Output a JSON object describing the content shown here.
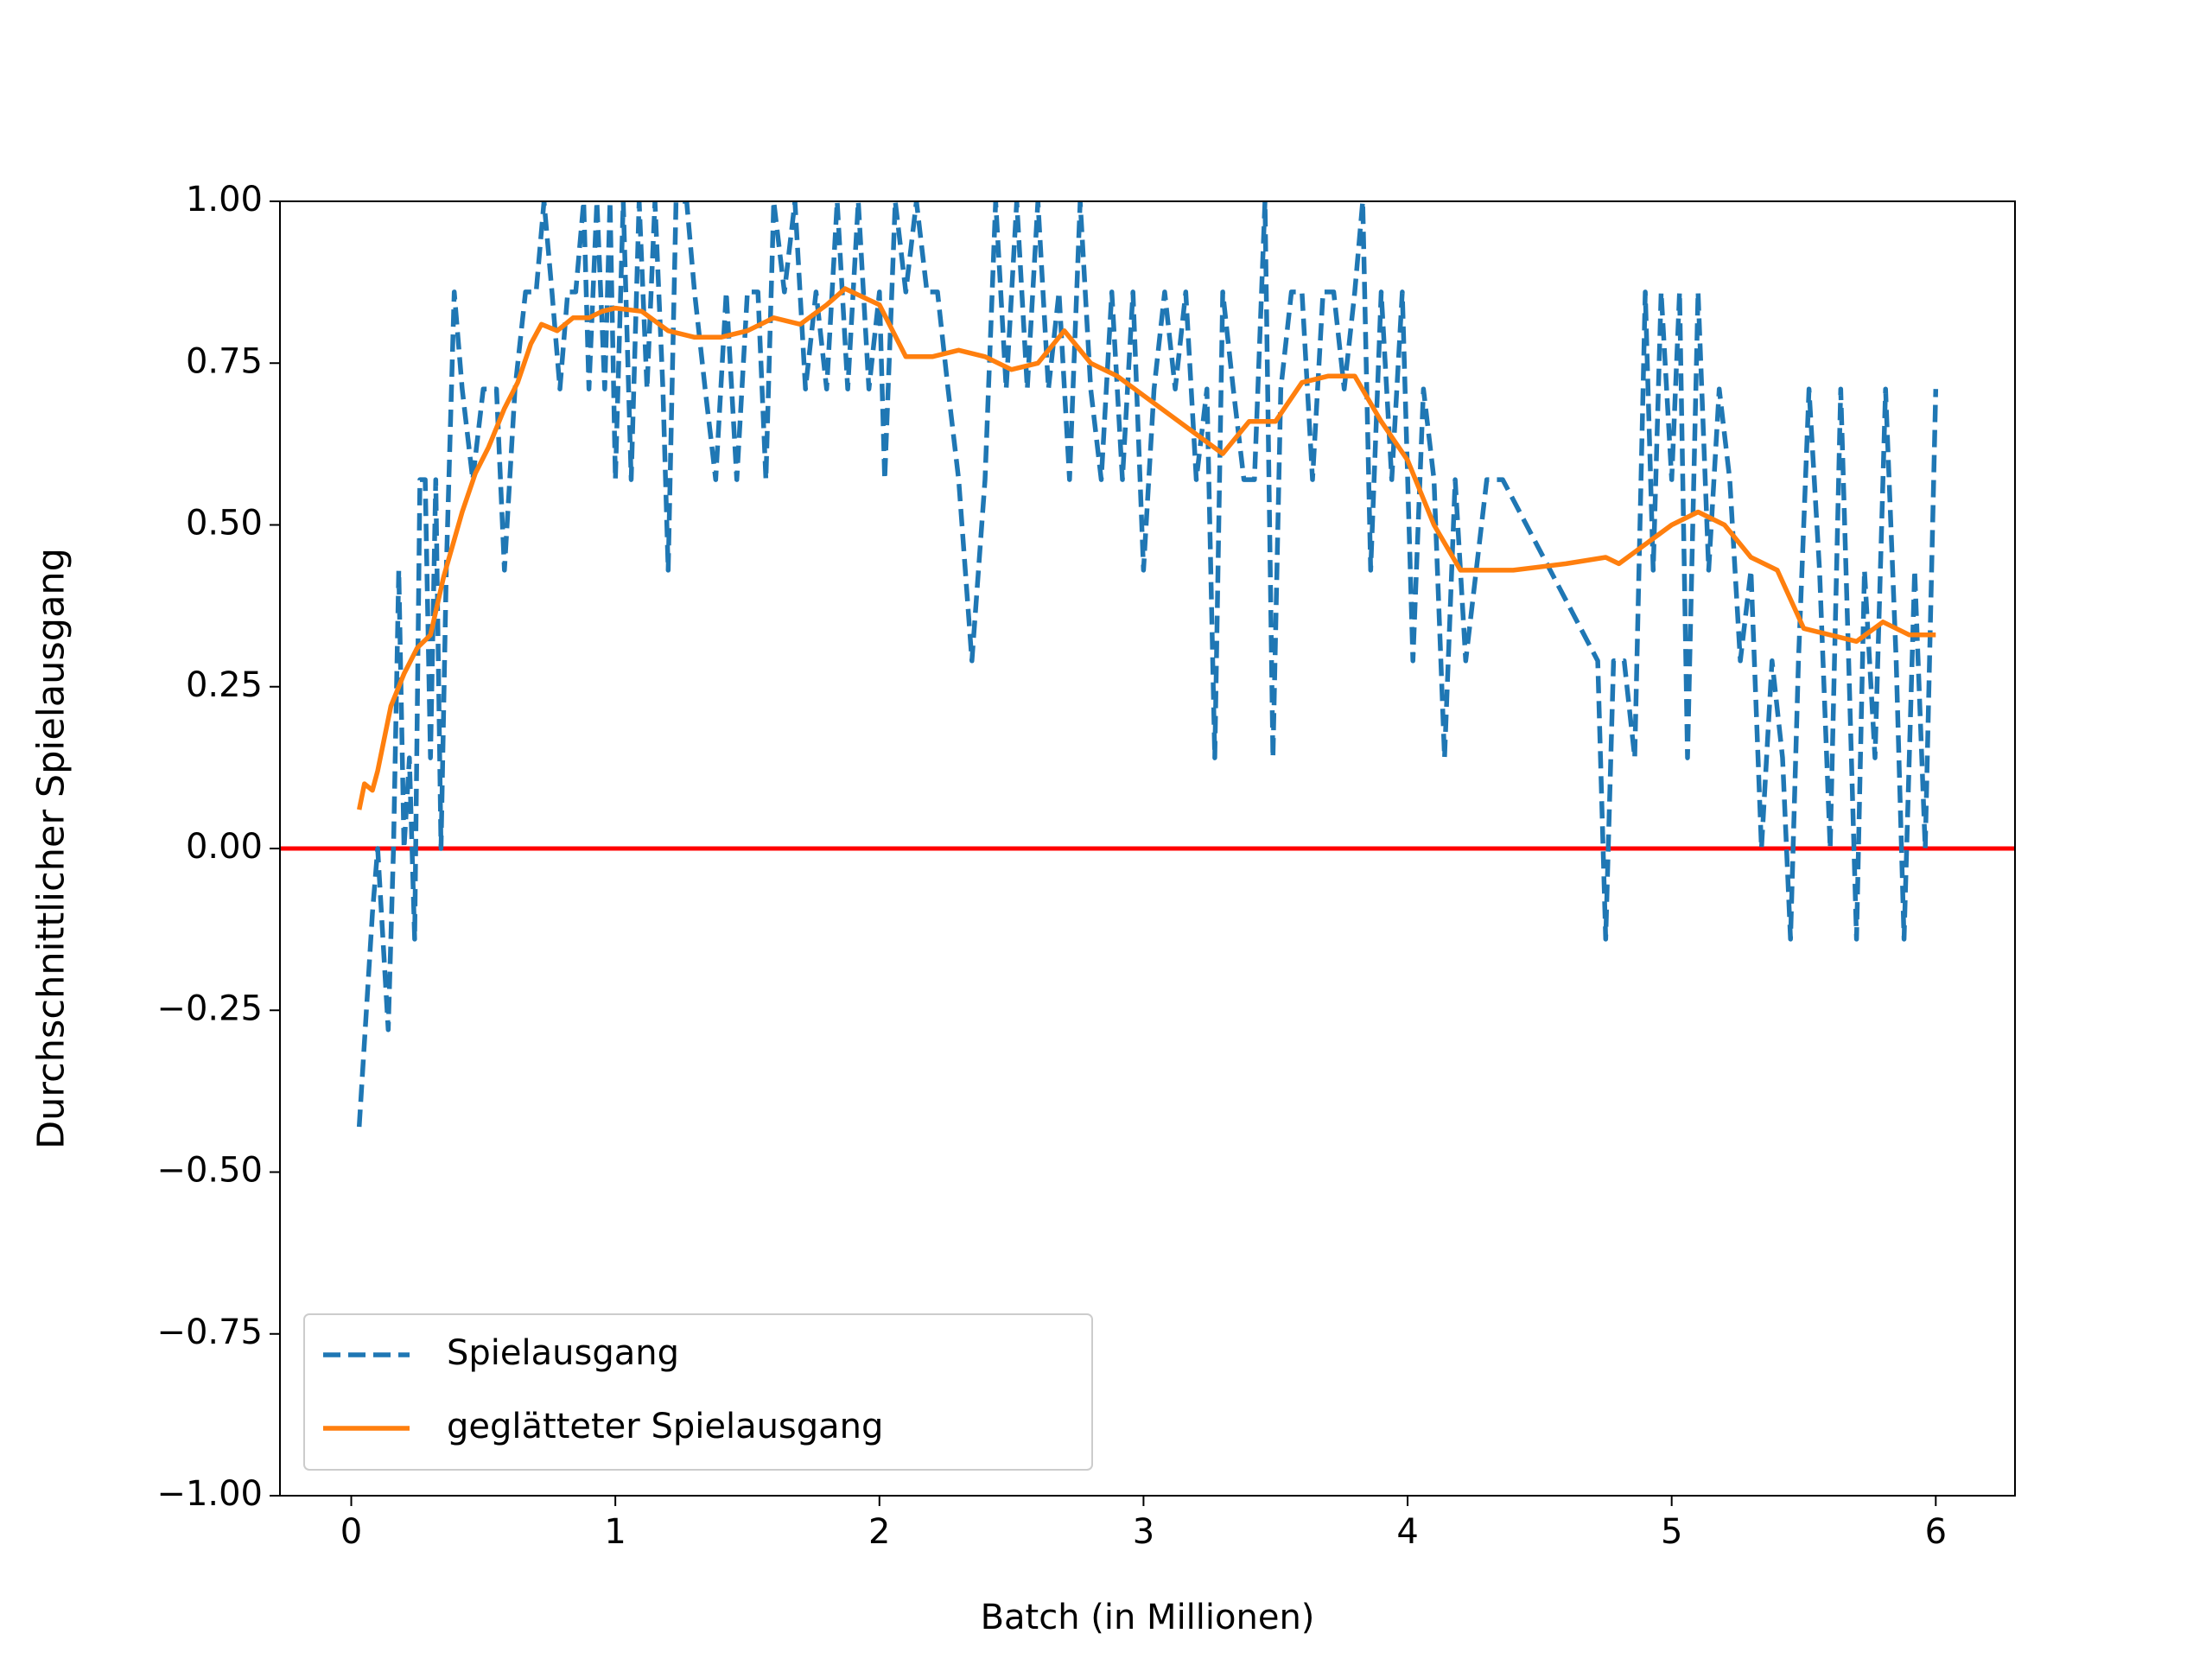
{
  "chart_data": {
    "type": "line",
    "x_label": "Batch (in Millionen)",
    "y_label": "Durchschnittlicher Spielausgang",
    "xlim": [
      -0.27,
      6.3
    ],
    "ylim": [
      -1,
      1
    ],
    "xticks": [
      0,
      1,
      2,
      3,
      4,
      5,
      6
    ],
    "yticks": [
      {
        "value": -1,
        "label": "−1.00"
      },
      {
        "value": -0.75,
        "label": "−0.75"
      },
      {
        "value": -0.5,
        "label": "−0.50"
      },
      {
        "value": -0.25,
        "label": "−0.25"
      },
      {
        "value": 0,
        "label": "0.00"
      },
      {
        "value": 0.25,
        "label": "0.25"
      },
      {
        "value": 0.5,
        "label": "0.50"
      },
      {
        "value": 0.75,
        "label": "0.75"
      },
      {
        "value": 1,
        "label": "1.00"
      }
    ],
    "legend_position": "lower left",
    "reference_line": {
      "y": 0,
      "color": "#ff0000"
    },
    "series": [
      {
        "name": "Spielausgang",
        "color": "#1f77b4",
        "style": "dashed",
        "x": [
          0.03,
          0.08,
          0.1,
          0.12,
          0.14,
          0.16,
          0.18,
          0.2,
          0.22,
          0.24,
          0.26,
          0.28,
          0.3,
          0.32,
          0.34,
          0.36,
          0.39,
          0.42,
          0.46,
          0.5,
          0.55,
          0.58,
          0.62,
          0.66,
          0.7,
          0.73,
          0.76,
          0.79,
          0.82,
          0.85,
          0.88,
          0.9,
          0.93,
          0.96,
          0.98,
          1.0,
          1.03,
          1.06,
          1.09,
          1.12,
          1.15,
          1.18,
          1.2,
          1.23,
          1.27,
          1.3,
          1.34,
          1.38,
          1.42,
          1.46,
          1.5,
          1.54,
          1.57,
          1.6,
          1.64,
          1.68,
          1.72,
          1.76,
          1.8,
          1.84,
          1.88,
          1.92,
          1.96,
          2.0,
          2.02,
          2.06,
          2.1,
          2.14,
          2.18,
          2.22,
          2.26,
          2.3,
          2.35,
          2.4,
          2.44,
          2.48,
          2.52,
          2.56,
          2.6,
          2.64,
          2.68,
          2.72,
          2.76,
          2.8,
          2.84,
          2.88,
          2.92,
          2.96,
          3.0,
          3.04,
          3.08,
          3.12,
          3.16,
          3.2,
          3.24,
          3.27,
          3.3,
          3.34,
          3.38,
          3.42,
          3.46,
          3.49,
          3.52,
          3.56,
          3.6,
          3.64,
          3.68,
          3.72,
          3.76,
          3.8,
          3.83,
          3.86,
          3.9,
          3.94,
          3.98,
          4.02,
          4.06,
          4.1,
          4.14,
          4.18,
          4.22,
          4.26,
          4.3,
          4.36,
          4.72,
          4.75,
          4.78,
          4.82,
          4.86,
          4.9,
          4.93,
          4.96,
          5.0,
          5.03,
          5.06,
          5.1,
          5.14,
          5.18,
          5.22,
          5.26,
          5.3,
          5.34,
          5.38,
          5.42,
          5.45,
          5.48,
          5.52,
          5.56,
          5.6,
          5.64,
          5.67,
          5.7,
          5.73,
          5.77,
          5.81,
          5.85,
          5.88,
          5.92,
          5.96,
          6.0
        ],
        "values": [
          -0.43,
          -0.1,
          0.0,
          -0.14,
          -0.28,
          0.0,
          0.43,
          0.0,
          0.14,
          -0.14,
          0.57,
          0.57,
          0.14,
          0.57,
          0.0,
          0.43,
          0.86,
          0.71,
          0.57,
          0.71,
          0.71,
          0.43,
          0.71,
          0.86,
          0.86,
          1.0,
          0.86,
          0.71,
          0.86,
          0.86,
          1.0,
          0.71,
          1.0,
          0.71,
          1.0,
          0.57,
          1.0,
          0.57,
          1.0,
          0.71,
          1.0,
          0.71,
          0.43,
          1.0,
          1.0,
          0.86,
          0.71,
          0.57,
          0.86,
          0.57,
          0.86,
          0.86,
          0.57,
          1.0,
          0.86,
          1.0,
          0.71,
          0.86,
          0.71,
          1.0,
          0.71,
          1.0,
          0.71,
          0.86,
          0.57,
          1.0,
          0.86,
          1.0,
          0.86,
          0.86,
          0.71,
          0.57,
          0.29,
          0.57,
          1.0,
          0.71,
          1.0,
          0.71,
          1.0,
          0.71,
          0.86,
          0.57,
          1.0,
          0.71,
          0.57,
          0.86,
          0.57,
          0.86,
          0.43,
          0.71,
          0.86,
          0.71,
          0.86,
          0.57,
          0.71,
          0.14,
          0.86,
          0.71,
          0.57,
          0.57,
          1.0,
          0.14,
          0.71,
          0.86,
          0.86,
          0.57,
          0.86,
          0.86,
          0.71,
          0.86,
          1.0,
          0.43,
          0.86,
          0.57,
          0.86,
          0.29,
          0.71,
          0.57,
          0.14,
          0.57,
          0.29,
          0.43,
          0.57,
          0.57,
          0.29,
          -0.14,
          0.29,
          0.29,
          0.14,
          0.86,
          0.43,
          0.86,
          0.57,
          0.86,
          0.14,
          0.86,
          0.43,
          0.71,
          0.57,
          0.29,
          0.43,
          0.0,
          0.29,
          0.14,
          -0.14,
          0.29,
          0.71,
          0.43,
          0.0,
          0.71,
          0.29,
          -0.14,
          0.43,
          0.14,
          0.71,
          0.29,
          -0.14,
          0.43,
          0.0,
          0.71
        ]
      },
      {
        "name": "geglätteter Spielausgang",
        "color": "#ff7f0e",
        "style": "solid",
        "x": [
          0.03,
          0.05,
          0.08,
          0.1,
          0.15,
          0.2,
          0.25,
          0.3,
          0.35,
          0.42,
          0.47,
          0.52,
          0.58,
          0.63,
          0.68,
          0.72,
          0.78,
          0.84,
          0.9,
          0.95,
          1.0,
          1.1,
          1.2,
          1.3,
          1.4,
          1.5,
          1.6,
          1.7,
          1.8,
          1.87,
          2.0,
          2.1,
          2.2,
          2.3,
          2.4,
          2.5,
          2.6,
          2.7,
          2.8,
          2.9,
          3.0,
          3.1,
          3.2,
          3.3,
          3.4,
          3.5,
          3.6,
          3.7,
          3.8,
          3.9,
          4.0,
          4.1,
          4.2,
          4.4,
          4.6,
          4.75,
          4.8,
          4.9,
          5.0,
          5.1,
          5.2,
          5.3,
          5.4,
          5.5,
          5.6,
          5.7,
          5.8,
          5.9,
          6.0
        ],
        "values": [
          0.06,
          0.1,
          0.09,
          0.12,
          0.22,
          0.27,
          0.31,
          0.33,
          0.42,
          0.52,
          0.58,
          0.62,
          0.68,
          0.72,
          0.78,
          0.81,
          0.8,
          0.82,
          0.82,
          0.83,
          0.835,
          0.83,
          0.8,
          0.79,
          0.79,
          0.8,
          0.82,
          0.81,
          0.84,
          0.865,
          0.84,
          0.76,
          0.76,
          0.77,
          0.76,
          0.74,
          0.75,
          0.8,
          0.75,
          0.73,
          0.7,
          0.67,
          0.64,
          0.61,
          0.66,
          0.66,
          0.72,
          0.73,
          0.73,
          0.66,
          0.6,
          0.5,
          0.43,
          0.43,
          0.44,
          0.45,
          0.44,
          0.47,
          0.5,
          0.52,
          0.5,
          0.45,
          0.43,
          0.34,
          0.33,
          0.32,
          0.35,
          0.33,
          0.33
        ]
      }
    ]
  }
}
